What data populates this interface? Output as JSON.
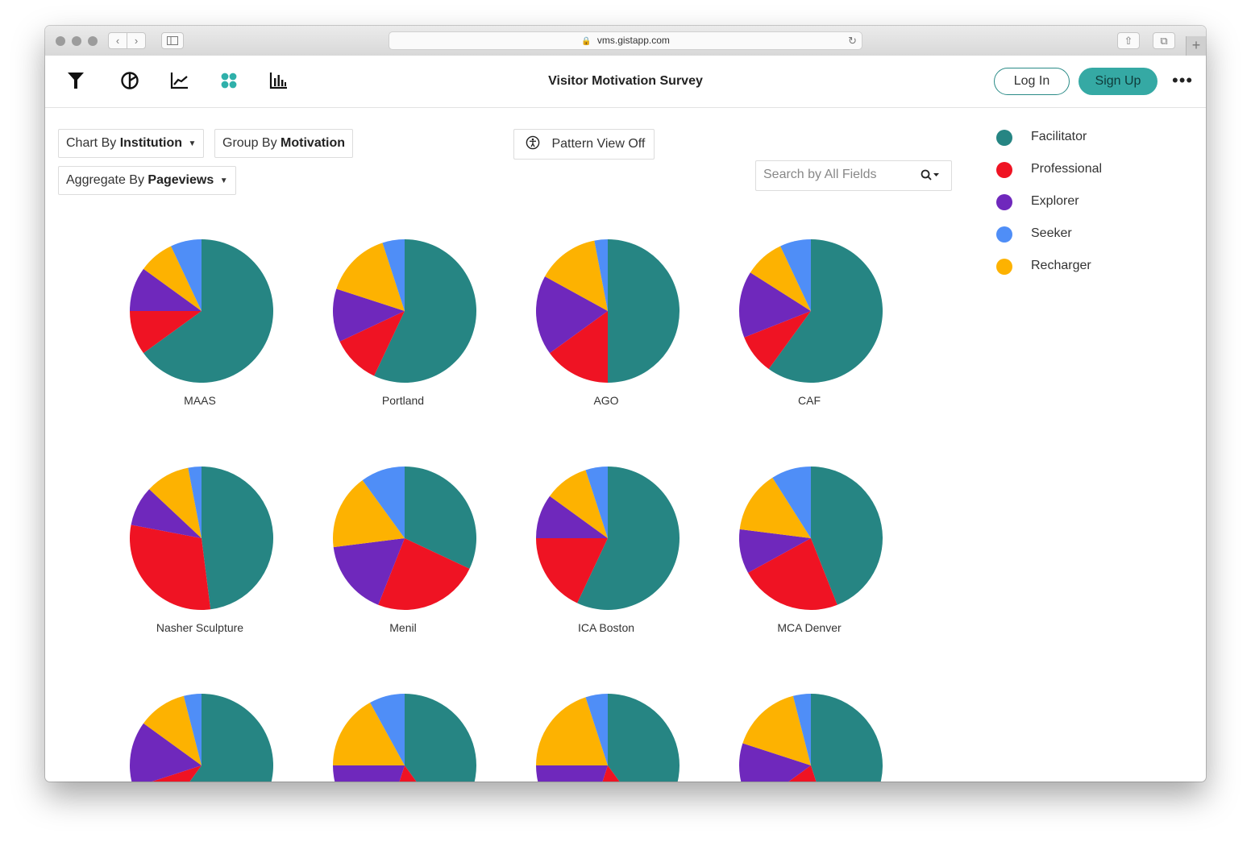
{
  "browser": {
    "url": "vms.gistapp.com"
  },
  "app": {
    "title": "Visitor Motivation Survey",
    "login_label": "Log In",
    "signup_label": "Sign Up",
    "toolbar_icons": [
      "filter-icon",
      "pie-chart-icon",
      "line-chart-icon",
      "dot-grid-icon",
      "bar-chart-icon"
    ],
    "active_tool": "dot-grid-icon"
  },
  "controls": {
    "chart_by_prefix": "Chart By",
    "chart_by_value": "Institution",
    "group_by_prefix": "Group By",
    "group_by_value": "Motivation",
    "aggregate_by_prefix": "Aggregate By",
    "aggregate_by_value": "Pageviews",
    "pattern_view_label": "Pattern View Off",
    "search_placeholder": "Search by All Fields"
  },
  "legend": [
    {
      "label": "Facilitator",
      "color": "#268583"
    },
    {
      "label": "Professional",
      "color": "#ef1323"
    },
    {
      "label": "Explorer",
      "color": "#6f28bc"
    },
    {
      "label": "Seeker",
      "color": "#4f8ef7"
    },
    {
      "label": "Recharger",
      "color": "#fdb201"
    }
  ],
  "chart_data": {
    "type": "pie",
    "series_order": [
      "Facilitator",
      "Professional",
      "Explorer",
      "Seeker",
      "Recharger"
    ],
    "charts": [
      {
        "label": "MAAS",
        "values": {
          "Facilitator": 65,
          "Professional": 10,
          "Explorer": 10,
          "Seeker": 7,
          "Recharger": 8
        }
      },
      {
        "label": "Portland",
        "values": {
          "Facilitator": 57,
          "Professional": 11,
          "Explorer": 12,
          "Seeker": 5,
          "Recharger": 15
        }
      },
      {
        "label": "AGO",
        "values": {
          "Facilitator": 50,
          "Professional": 15,
          "Explorer": 18,
          "Seeker": 3,
          "Recharger": 14
        }
      },
      {
        "label": "CAF",
        "values": {
          "Facilitator": 60,
          "Professional": 9,
          "Explorer": 15,
          "Seeker": 7,
          "Recharger": 9
        }
      },
      {
        "label": "Nasher Sculpture",
        "values": {
          "Facilitator": 48,
          "Professional": 30,
          "Explorer": 9,
          "Seeker": 3,
          "Recharger": 10
        }
      },
      {
        "label": "Menil",
        "values": {
          "Facilitator": 32,
          "Professional": 24,
          "Explorer": 17,
          "Seeker": 10,
          "Recharger": 17
        }
      },
      {
        "label": "ICA Boston",
        "values": {
          "Facilitator": 57,
          "Professional": 18,
          "Explorer": 10,
          "Seeker": 5,
          "Recharger": 10
        }
      },
      {
        "label": "MCA Denver",
        "values": {
          "Facilitator": 44,
          "Professional": 23,
          "Explorer": 10,
          "Seeker": 9,
          "Recharger": 14
        }
      },
      {
        "label": "",
        "values": {
          "Facilitator": 60,
          "Professional": 10,
          "Explorer": 15,
          "Seeker": 4,
          "Recharger": 11
        }
      },
      {
        "label": "",
        "values": {
          "Facilitator": 40,
          "Professional": 15,
          "Explorer": 20,
          "Seeker": 8,
          "Recharger": 17
        }
      },
      {
        "label": "",
        "values": {
          "Facilitator": 40,
          "Professional": 15,
          "Explorer": 20,
          "Seeker": 5,
          "Recharger": 20
        }
      },
      {
        "label": "",
        "values": {
          "Facilitator": 45,
          "Professional": 20,
          "Explorer": 15,
          "Seeker": 4,
          "Recharger": 16
        }
      }
    ]
  }
}
